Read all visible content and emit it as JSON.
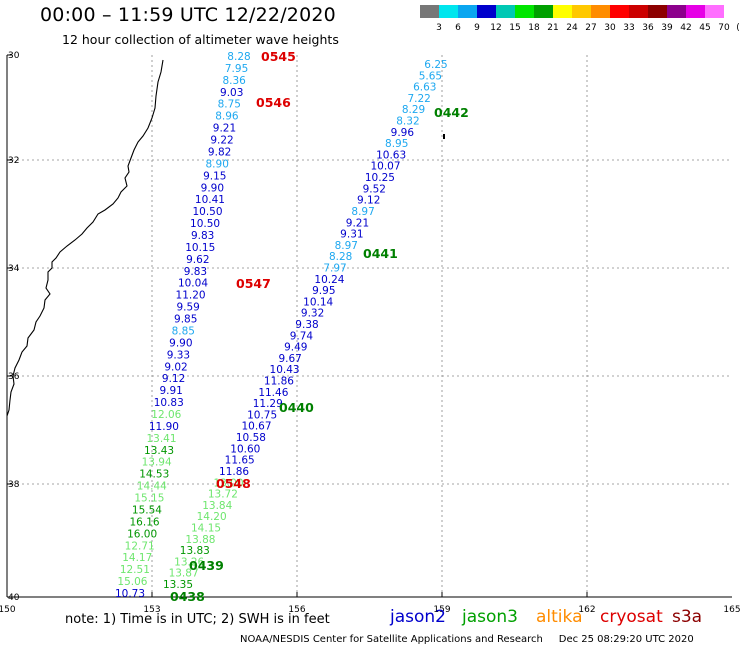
{
  "header": {
    "title": "00:00 – 11:59 UTC 12/22/2020",
    "subtitle": "12 hour collection of altimeter wave heights"
  },
  "legend": {
    "labels": [
      "3",
      "6",
      "9",
      "12",
      "15",
      "18",
      "21",
      "24",
      "27",
      "30",
      "33",
      "36",
      "39",
      "42",
      "45",
      "70",
      "(ft)"
    ],
    "colors": [
      "#777777",
      "#00e6ee",
      "#0aa6f0",
      "#0000cc",
      "#00c8b4",
      "#00e600",
      "#00a000",
      "#ffff00",
      "#ffc800",
      "#ff8c00",
      "#ff0000",
      "#cc0000",
      "#8c0000",
      "#8c008c",
      "#e600e6",
      "#ff6eff",
      "#000000"
    ]
  },
  "map": {
    "lat_labels": [
      "30",
      "32",
      "34",
      "36",
      "38",
      "40"
    ],
    "lon_labels": [
      "150",
      "153",
      "156",
      "159",
      "162",
      "165"
    ],
    "track_a": {
      "values": [
        "8.28",
        "7.95",
        "8.36",
        "9.03",
        "8.75",
        "8.96",
        "9.21",
        "9.22",
        "9.82",
        "8.90",
        "9.15",
        "9.90",
        "10.41",
        "10.50",
        "10.50",
        "9.83",
        "10.15",
        "9.62",
        "9.83",
        "10.04",
        "11.20",
        "9.59",
        "9.85",
        "8.85",
        "9.90",
        "9.33",
        "9.02",
        "9.12",
        "9.91",
        "10.83",
        "12.06",
        "11.90",
        "13.41",
        "13.43",
        "13.94",
        "14.53",
        "14.44",
        "15.15",
        "15.54",
        "16.16",
        "16.00",
        "12.71",
        "14.17",
        "12.51",
        "15.06",
        "10.73"
      ],
      "colors": [
        "#1ea8f0",
        "#1ea8f0",
        "#1ea8f0",
        "#0000cc",
        "#1ea8f0",
        "#1ea8f0",
        "#0000cc",
        "#0000cc",
        "#0000cc",
        "#1ea8f0",
        "#0000cc",
        "#0000cc",
        "#0000cc",
        "#0000cc",
        "#0000cc",
        "#0000cc",
        "#0000cc",
        "#0000cc",
        "#0000cc",
        "#0000cc",
        "#0000cc",
        "#0000cc",
        "#0000cc",
        "#1ea8f0",
        "#0000cc",
        "#0000cc",
        "#0000cc",
        "#0000cc",
        "#0000cc",
        "#0000cc",
        "#6ee66e",
        "#0000cc",
        "#6ee66e",
        "#009600",
        "#6ee66e",
        "#009600",
        "#6ee66e",
        "#6ee66e",
        "#009600",
        "#009600",
        "#009600",
        "#6ee66e",
        "#6ee66e",
        "#6ee66e",
        "#6ee66e",
        "#0000cc"
      ]
    },
    "track_b": {
      "values": [
        "6.25",
        "5.65",
        "6.63",
        "7.22",
        "8.29",
        "8.32",
        "9.96",
        "8.95",
        "10.63",
        "10.07",
        "10.25",
        "9.52",
        "9.12",
        "8.97",
        "9.21",
        "9.31",
        "8.97",
        "8.28",
        "7.97",
        "10.24",
        "9.95",
        "10.14",
        "9.32",
        "9.38",
        "9.74",
        "9.49",
        "9.67",
        "10.43",
        "11.86",
        "11.46",
        "11.29",
        "10.75",
        "10.67",
        "10.58",
        "10.60",
        "11.65",
        "11.86",
        "13.00",
        "13.72",
        "13.84",
        "14.20",
        "14.15",
        "13.88",
        "13.83",
        "13.26",
        "13.87",
        "13.35"
      ],
      "colors": [
        "#1ea8f0",
        "#1ea8f0",
        "#1ea8f0",
        "#1ea8f0",
        "#1ea8f0",
        "#1ea8f0",
        "#0000cc",
        "#1ea8f0",
        "#0000cc",
        "#0000cc",
        "#0000cc",
        "#0000cc",
        "#0000cc",
        "#1ea8f0",
        "#0000cc",
        "#0000cc",
        "#1ea8f0",
        "#1ea8f0",
        "#1ea8f0",
        "#0000cc",
        "#0000cc",
        "#0000cc",
        "#0000cc",
        "#0000cc",
        "#0000cc",
        "#0000cc",
        "#0000cc",
        "#0000cc",
        "#0000cc",
        "#0000cc",
        "#0000cc",
        "#0000cc",
        "#0000cc",
        "#0000cc",
        "#0000cc",
        "#0000cc",
        "#0000cc",
        "#6ee66e",
        "#6ee66e",
        "#6ee66e",
        "#6ee66e",
        "#6ee66e",
        "#6ee66e",
        "#009600",
        "#6ee66e",
        "#6ee66e",
        "#009600"
      ]
    },
    "time_labels": [
      {
        "text": "0545",
        "color": "#dd0000"
      },
      {
        "text": "0546",
        "color": "#dd0000"
      },
      {
        "text": "0547",
        "color": "#dd0000"
      },
      {
        "text": "0548",
        "color": "#dd0000"
      },
      {
        "text": "0442",
        "color": "#008000"
      },
      {
        "text": "0441",
        "color": "#008000"
      },
      {
        "text": "0440",
        "color": "#008000"
      },
      {
        "text": "0439",
        "color": "#008000"
      },
      {
        "text": "0438",
        "color": "#008000"
      }
    ]
  },
  "footer": {
    "note": "note: 1) Time is in UTC; 2) SWH is in feet",
    "satellites": [
      {
        "name": "jason2",
        "color": "#0000cc"
      },
      {
        "name": "jason3",
        "color": "#00a000"
      },
      {
        "name": "altika",
        "color": "#ff8c00"
      },
      {
        "name": "cryosat",
        "color": "#dd0000"
      },
      {
        "name": "s3a",
        "color": "#8c0000"
      }
    ],
    "credit": "NOAA/NESDIS Center for Satellite Applications and Research     Dec 25 08:29:20 UTC 2020"
  }
}
